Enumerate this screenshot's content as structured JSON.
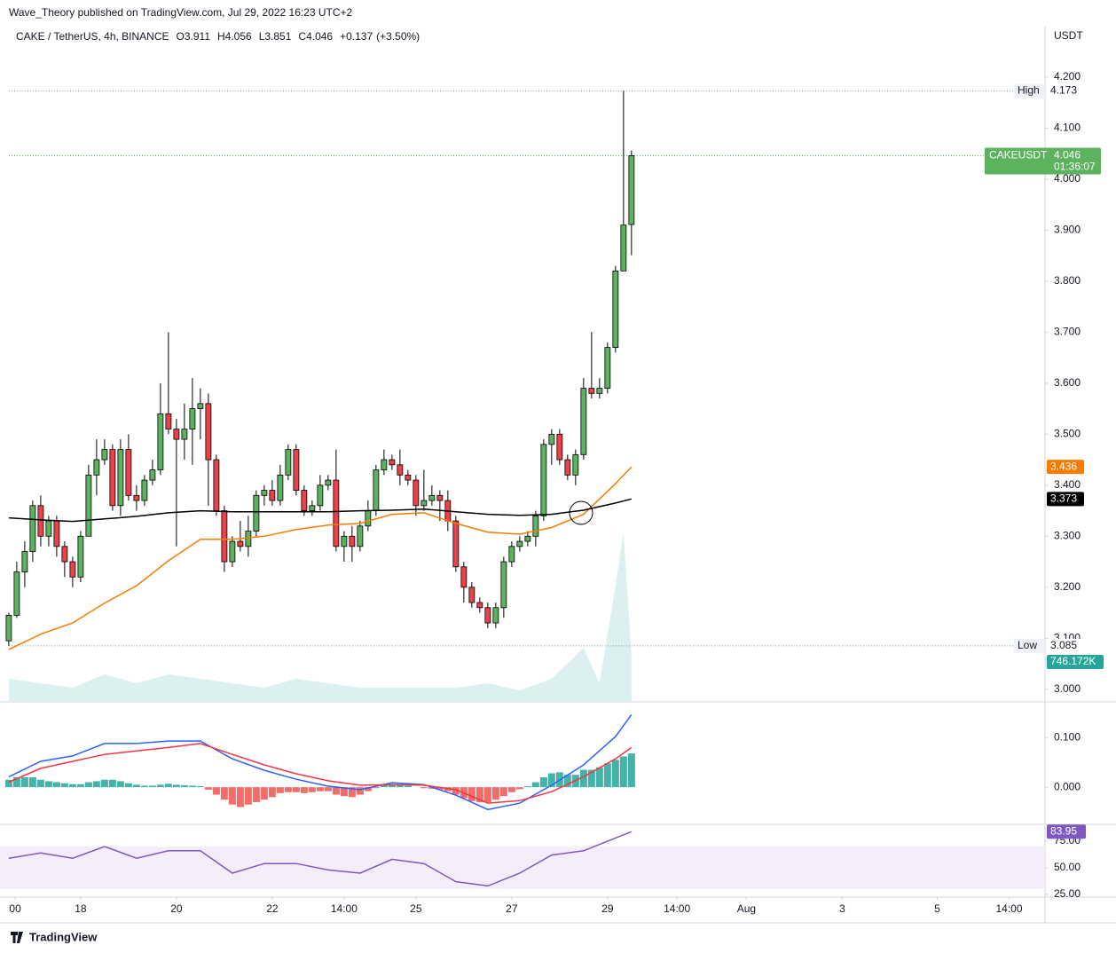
{
  "header": {
    "publisher": "Wave_Theory published on TradingView.com, Jul 29, 2022 16:23 UTC+2",
    "brand": "TradingView"
  },
  "chart_data": [
    {
      "type": "candlestick",
      "symbol": "CAKE / TetherUS, 4h, BINANCE",
      "legend": {
        "open": {
          "value": 3.911,
          "label": "O3.911"
        },
        "high": {
          "value": 4.056,
          "label": "H4.056"
        },
        "low": {
          "value": 3.851,
          "label": "L3.851"
        },
        "close": {
          "value": 4.046,
          "label": "C4.046"
        },
        "change": {
          "value": 0.137,
          "label": "+0.137"
        },
        "change_pct": {
          "value": 3.5,
          "label": "(+3.50%)"
        }
      },
      "currency": "USDT",
      "up_color": "#5cb25f",
      "down_color": "#e8434a",
      "open": [
        3.095,
        3.145,
        3.23,
        3.27,
        3.36,
        3.3,
        3.33,
        3.28,
        3.25,
        3.22,
        3.3,
        3.42,
        3.45,
        3.47,
        3.36,
        3.47,
        3.38,
        3.37,
        3.41,
        3.43,
        3.54,
        3.51,
        3.49,
        3.51,
        3.55,
        3.56,
        3.45,
        3.35,
        3.25,
        3.29,
        3.28,
        3.31,
        3.38,
        3.39,
        3.37,
        3.42,
        3.47,
        3.39,
        3.35,
        3.36,
        3.4,
        3.41,
        3.28,
        3.3,
        3.28,
        3.32,
        3.35,
        3.43,
        3.45,
        3.44,
        3.42,
        3.41,
        3.36,
        3.37,
        3.38,
        3.37,
        3.33,
        3.24,
        3.2,
        3.17,
        3.16,
        3.13,
        3.16,
        3.25,
        3.28,
        3.29,
        3.3,
        3.34,
        3.48,
        3.5,
        3.45,
        3.42,
        3.46,
        3.59,
        3.58,
        3.59,
        3.67,
        3.82,
        3.911
      ],
      "high": [
        3.15,
        3.25,
        3.29,
        3.37,
        3.38,
        3.34,
        3.34,
        3.29,
        3.26,
        3.31,
        3.44,
        3.49,
        3.49,
        3.48,
        3.49,
        3.5,
        3.4,
        3.42,
        3.45,
        3.6,
        3.7,
        3.53,
        3.56,
        3.61,
        3.59,
        3.58,
        3.46,
        3.36,
        3.3,
        3.33,
        3.34,
        3.39,
        3.4,
        3.41,
        3.44,
        3.48,
        3.48,
        3.4,
        3.37,
        3.42,
        3.42,
        3.47,
        3.31,
        3.32,
        3.33,
        3.37,
        3.44,
        3.47,
        3.46,
        3.47,
        3.43,
        3.42,
        3.43,
        3.4,
        3.39,
        3.39,
        3.34,
        3.25,
        3.21,
        3.18,
        3.17,
        3.17,
        3.26,
        3.29,
        3.3,
        3.31,
        3.35,
        3.49,
        3.51,
        3.51,
        3.46,
        3.47,
        3.61,
        3.7,
        3.61,
        3.68,
        3.83,
        4.173,
        4.056
      ],
      "low": [
        3.085,
        3.14,
        3.2,
        3.25,
        3.28,
        3.28,
        3.26,
        3.22,
        3.2,
        3.21,
        3.3,
        3.38,
        3.44,
        3.35,
        3.34,
        3.37,
        3.35,
        3.36,
        3.4,
        3.42,
        3.5,
        3.28,
        3.45,
        3.44,
        3.49,
        3.36,
        3.34,
        3.23,
        3.24,
        3.27,
        3.26,
        3.3,
        3.36,
        3.36,
        3.36,
        3.41,
        3.38,
        3.34,
        3.34,
        3.35,
        3.39,
        3.27,
        3.25,
        3.25,
        3.27,
        3.31,
        3.34,
        3.42,
        3.43,
        3.4,
        3.4,
        3.34,
        3.35,
        3.36,
        3.33,
        3.31,
        3.23,
        3.17,
        3.16,
        3.15,
        3.12,
        3.12,
        3.14,
        3.24,
        3.27,
        3.28,
        3.28,
        3.33,
        3.44,
        3.44,
        3.41,
        3.4,
        3.45,
        3.57,
        3.57,
        3.58,
        3.66,
        3.82,
        3.851
      ],
      "close": [
        3.145,
        3.23,
        3.27,
        3.36,
        3.3,
        3.33,
        3.28,
        3.25,
        3.22,
        3.3,
        3.42,
        3.45,
        3.47,
        3.36,
        3.47,
        3.38,
        3.37,
        3.41,
        3.43,
        3.54,
        3.51,
        3.49,
        3.51,
        3.55,
        3.56,
        3.45,
        3.35,
        3.25,
        3.29,
        3.28,
        3.31,
        3.38,
        3.39,
        3.37,
        3.42,
        3.47,
        3.39,
        3.35,
        3.36,
        3.4,
        3.41,
        3.28,
        3.3,
        3.28,
        3.32,
        3.35,
        3.43,
        3.45,
        3.44,
        3.42,
        3.41,
        3.36,
        3.37,
        3.38,
        3.37,
        3.33,
        3.24,
        3.2,
        3.17,
        3.16,
        3.13,
        3.16,
        3.25,
        3.28,
        3.29,
        3.3,
        3.34,
        3.48,
        3.5,
        3.45,
        3.42,
        3.46,
        3.59,
        3.58,
        3.59,
        3.67,
        3.82,
        3.91,
        4.046
      ],
      "high_label": "High",
      "low_label": "Low",
      "symbol_label": "CAKEUSDT",
      "countdown": "01:36:07",
      "xlim": [
        -1.1,
        129.8
      ],
      "xticks": [
        {
          "value": 0.8,
          "label": "00"
        },
        {
          "value": 9,
          "label": "18"
        },
        {
          "value": 21,
          "label": "20"
        },
        {
          "value": 33,
          "label": "22"
        },
        {
          "value": 42,
          "label": "14:00"
        },
        {
          "value": 51,
          "label": "25"
        },
        {
          "value": 63,
          "label": "27"
        },
        {
          "value": 75,
          "label": "29"
        },
        {
          "value": 83.7,
          "label": "14:00"
        },
        {
          "value": 92.4,
          "label": "Aug"
        },
        {
          "value": 104.4,
          "label": "3"
        },
        {
          "value": 116.3,
          "label": "5"
        },
        {
          "value": 125.3,
          "label": "14:00"
        }
      ],
      "ylim": [
        2.977,
        4.299
      ],
      "yticks": [
        {
          "value": 3.0,
          "label": "3.000"
        },
        {
          "value": 3.1,
          "label": "3.100"
        },
        {
          "value": 3.2,
          "label": "3.200"
        },
        {
          "value": 3.3,
          "label": "3.300"
        },
        {
          "value": 3.4,
          "label": "3.400"
        },
        {
          "value": 3.5,
          "label": "3.500"
        },
        {
          "value": 3.6,
          "label": "3.600"
        },
        {
          "value": 3.7,
          "label": "3.700"
        },
        {
          "value": 3.8,
          "label": "3.800"
        },
        {
          "value": 3.9,
          "label": "3.900"
        },
        {
          "value": 4.0,
          "label": "4.000"
        },
        {
          "value": 4.1,
          "label": "4.100"
        },
        {
          "value": 4.2,
          "label": "4.200"
        }
      ],
      "grid": false,
      "overlays": [
        {
          "color": "#f57c00",
          "x": [
            0,
            4,
            8,
            12,
            16,
            20,
            24,
            28,
            32,
            36,
            40,
            44,
            48,
            52,
            56,
            60,
            64,
            68,
            72,
            76,
            78
          ],
          "values": [
            3.078,
            3.108,
            3.13,
            3.169,
            3.203,
            3.252,
            3.294,
            3.294,
            3.3,
            3.313,
            3.322,
            3.325,
            3.343,
            3.346,
            3.325,
            3.308,
            3.304,
            3.317,
            3.343,
            3.403,
            3.436
          ]
        },
        {
          "color": "#000000",
          "x": [
            0,
            4,
            8,
            12,
            16,
            20,
            24,
            28,
            32,
            36,
            40,
            44,
            48,
            52,
            56,
            60,
            64,
            68,
            72,
            76,
            78
          ],
          "values": [
            3.336,
            3.332,
            3.329,
            3.334,
            3.339,
            3.346,
            3.35,
            3.348,
            3.348,
            3.348,
            3.348,
            3.35,
            3.351,
            3.353,
            3.348,
            3.343,
            3.341,
            3.343,
            3.351,
            3.365,
            3.373
          ]
        }
      ],
      "volume": {
        "color": "#b2dfdb",
        "x": [
          0,
          4,
          8,
          12,
          16,
          20,
          24,
          28,
          32,
          36,
          40,
          44,
          48,
          52,
          56,
          60,
          64,
          68,
          72,
          74,
          76,
          77,
          78
        ],
        "values": [
          339000,
          271000,
          204000,
          407000,
          271000,
          407000,
          339000,
          271000,
          204000,
          339000,
          271000,
          204000,
          204000,
          204000,
          204000,
          271000,
          163000,
          339000,
          814000,
          271000,
          1764000,
          2578000,
          746172
        ],
        "value_labels": {
          "22": "746.172K"
        },
        "ylim": [
          0,
          10310000
        ]
      }
    },
    {
      "type": "macd",
      "hist_up": "#26a69a",
      "hist_down": "#ef5350",
      "histogram": [
        0.015,
        0.02,
        0.02,
        0.02,
        0.015,
        0.012,
        0.01,
        0.008,
        0.006,
        0.006,
        0.01,
        0.012,
        0.015,
        0.015,
        0.012,
        0.008,
        0.005,
        0.003,
        0.003,
        0.005,
        0.007,
        0.005,
        0.004,
        0.003,
        0.002,
        -0.005,
        -0.015,
        -0.025,
        -0.035,
        -0.04,
        -0.035,
        -0.03,
        -0.025,
        -0.02,
        -0.012,
        -0.01,
        -0.01,
        -0.012,
        -0.01,
        -0.008,
        -0.008,
        -0.015,
        -0.018,
        -0.02,
        -0.015,
        -0.008,
        -0.002,
        0.004,
        0.005,
        0.004,
        0.003,
        0.0,
        -0.002,
        -0.003,
        -0.005,
        -0.008,
        -0.015,
        -0.022,
        -0.028,
        -0.03,
        -0.03,
        -0.025,
        -0.018,
        -0.01,
        -0.004,
        0.002,
        0.01,
        0.02,
        0.028,
        0.03,
        0.025,
        0.025,
        0.035,
        0.035,
        0.04,
        0.048,
        0.055,
        0.062,
        0.068
      ],
      "series": [
        {
          "color": "#2962ff",
          "x": [
            0,
            4,
            8,
            12,
            16,
            20,
            24,
            28,
            32,
            36,
            40,
            44,
            48,
            52,
            56,
            60,
            64,
            68,
            72,
            76,
            78
          ],
          "values": [
            0.021,
            0.052,
            0.063,
            0.088,
            0.088,
            0.093,
            0.093,
            0.057,
            0.034,
            0.016,
            0.002,
            -0.005,
            0.009,
            0.005,
            -0.016,
            -0.045,
            -0.032,
            0.004,
            0.045,
            0.102,
            0.146
          ]
        },
        {
          "color": "#f23645",
          "x": [
            0,
            4,
            8,
            12,
            16,
            20,
            24,
            28,
            32,
            36,
            40,
            44,
            48,
            52,
            56,
            60,
            64,
            68,
            72,
            76,
            78
          ],
          "values": [
            0.01,
            0.038,
            0.052,
            0.066,
            0.073,
            0.08,
            0.088,
            0.066,
            0.045,
            0.027,
            0.013,
            0.004,
            0.005,
            0.004,
            -0.005,
            -0.032,
            -0.027,
            -0.009,
            0.021,
            0.057,
            0.08
          ]
        }
      ],
      "ylim": [
        -0.073,
        0.17
      ],
      "yticks": [
        {
          "value": 0.0,
          "label": "0.000"
        },
        {
          "value": 0.1,
          "label": "0.100"
        }
      ]
    },
    {
      "type": "line",
      "series": [
        {
          "color": "#7e57c2",
          "x": [
            0,
            4,
            8,
            12,
            16,
            20,
            24,
            28,
            32,
            36,
            40,
            44,
            48,
            52,
            56,
            60,
            64,
            68,
            72,
            76,
            78
          ],
          "values": [
            59,
            64,
            59,
            70,
            59,
            66,
            66,
            45,
            54,
            54,
            48,
            45,
            58,
            54,
            37,
            33,
            45,
            62,
            66,
            78,
            83.95
          ]
        }
      ],
      "band": [
        30,
        70
      ],
      "band_color": "#f3eefa",
      "ylim": [
        23.3,
        90
      ],
      "yticks": [
        {
          "value": 25,
          "label": "25.00"
        },
        {
          "value": 50,
          "label": "50.00"
        },
        {
          "value": 75,
          "label": "75.00"
        }
      ]
    }
  ]
}
